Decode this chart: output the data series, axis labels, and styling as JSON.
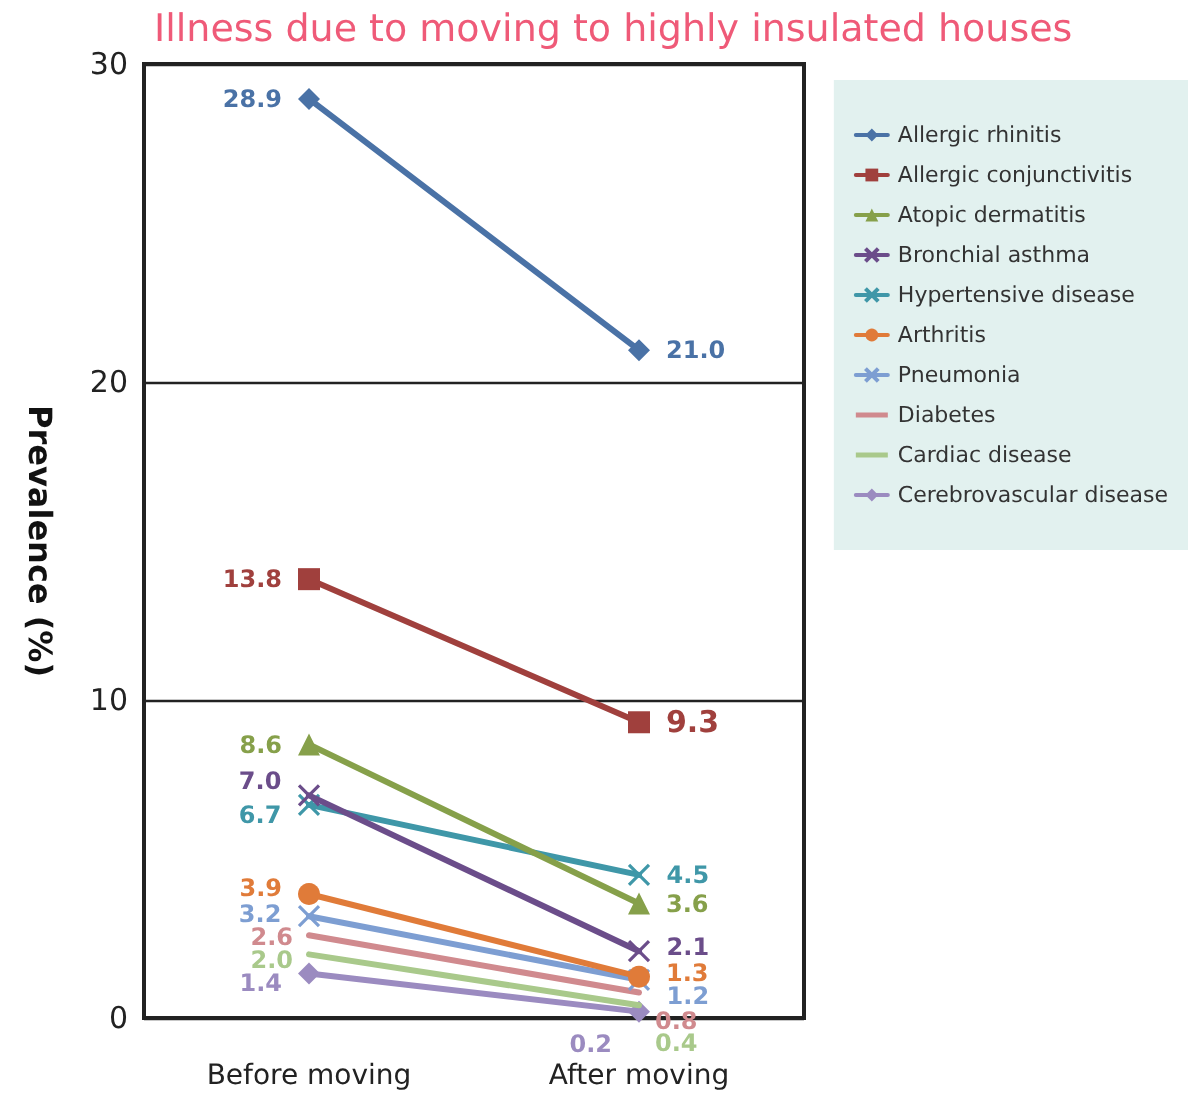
{
  "chart_data": {
    "type": "line",
    "title": "Illness due to moving to highly insulated houses",
    "ylabel": "Prevalence (%)",
    "categories": [
      "Before moving",
      "After moving"
    ],
    "ylim": [
      0,
      30
    ],
    "yticks": [
      0,
      10,
      20,
      30
    ],
    "grid": "y",
    "legend": "top right",
    "series": [
      {
        "name": "Allergic rhinitis",
        "color": "#4a72a6",
        "marker": "diamond",
        "values": [
          28.9,
          21.0
        ],
        "value_labels": [
          "28.9",
          "21.0"
        ]
      },
      {
        "name": "Allergic conjunctivitis",
        "color": "#a0403d",
        "marker": "square",
        "values": [
          13.8,
          9.3
        ],
        "value_labels": [
          "13.8",
          "9.3"
        ]
      },
      {
        "name": "Atopic dermatitis",
        "color": "#86a04a",
        "marker": "triangle",
        "values": [
          8.6,
          3.6
        ],
        "value_labels": [
          "8.6",
          "3.6"
        ]
      },
      {
        "name": "Bronchial asthma",
        "color": "#6b4d8a",
        "marker": "cross",
        "values": [
          7.0,
          2.1
        ],
        "value_labels": [
          "7.0",
          "2.1"
        ]
      },
      {
        "name": "Hypertensive disease",
        "color": "#3f97a8",
        "marker": "cross",
        "values": [
          6.7,
          4.5
        ],
        "value_labels": [
          "6.7",
          "4.5"
        ]
      },
      {
        "name": "Arthritis",
        "color": "#e07b39",
        "marker": "circle",
        "values": [
          3.9,
          1.3
        ],
        "value_labels": [
          "3.9",
          "1.3"
        ]
      },
      {
        "name": "Pneumonia",
        "color": "#7d9ed2",
        "marker": "cross",
        "values": [
          3.2,
          1.2
        ],
        "value_labels": [
          "3.2",
          "1.2"
        ]
      },
      {
        "name": "Diabetes",
        "color": "#d08a8e",
        "marker": "none",
        "values": [
          2.6,
          0.8
        ],
        "value_labels": [
          "2.6",
          "0.8"
        ]
      },
      {
        "name": "Cardiac disease",
        "color": "#a9c98b",
        "marker": "none",
        "values": [
          2.0,
          0.4
        ],
        "value_labels": [
          "2.0",
          "0.4"
        ]
      },
      {
        "name": "Cerebrovascular disease",
        "color": "#9b8bc0",
        "marker": "diamond",
        "values": [
          1.4,
          0.2
        ],
        "value_labels": [
          "1.4",
          "0.2"
        ]
      }
    ]
  }
}
